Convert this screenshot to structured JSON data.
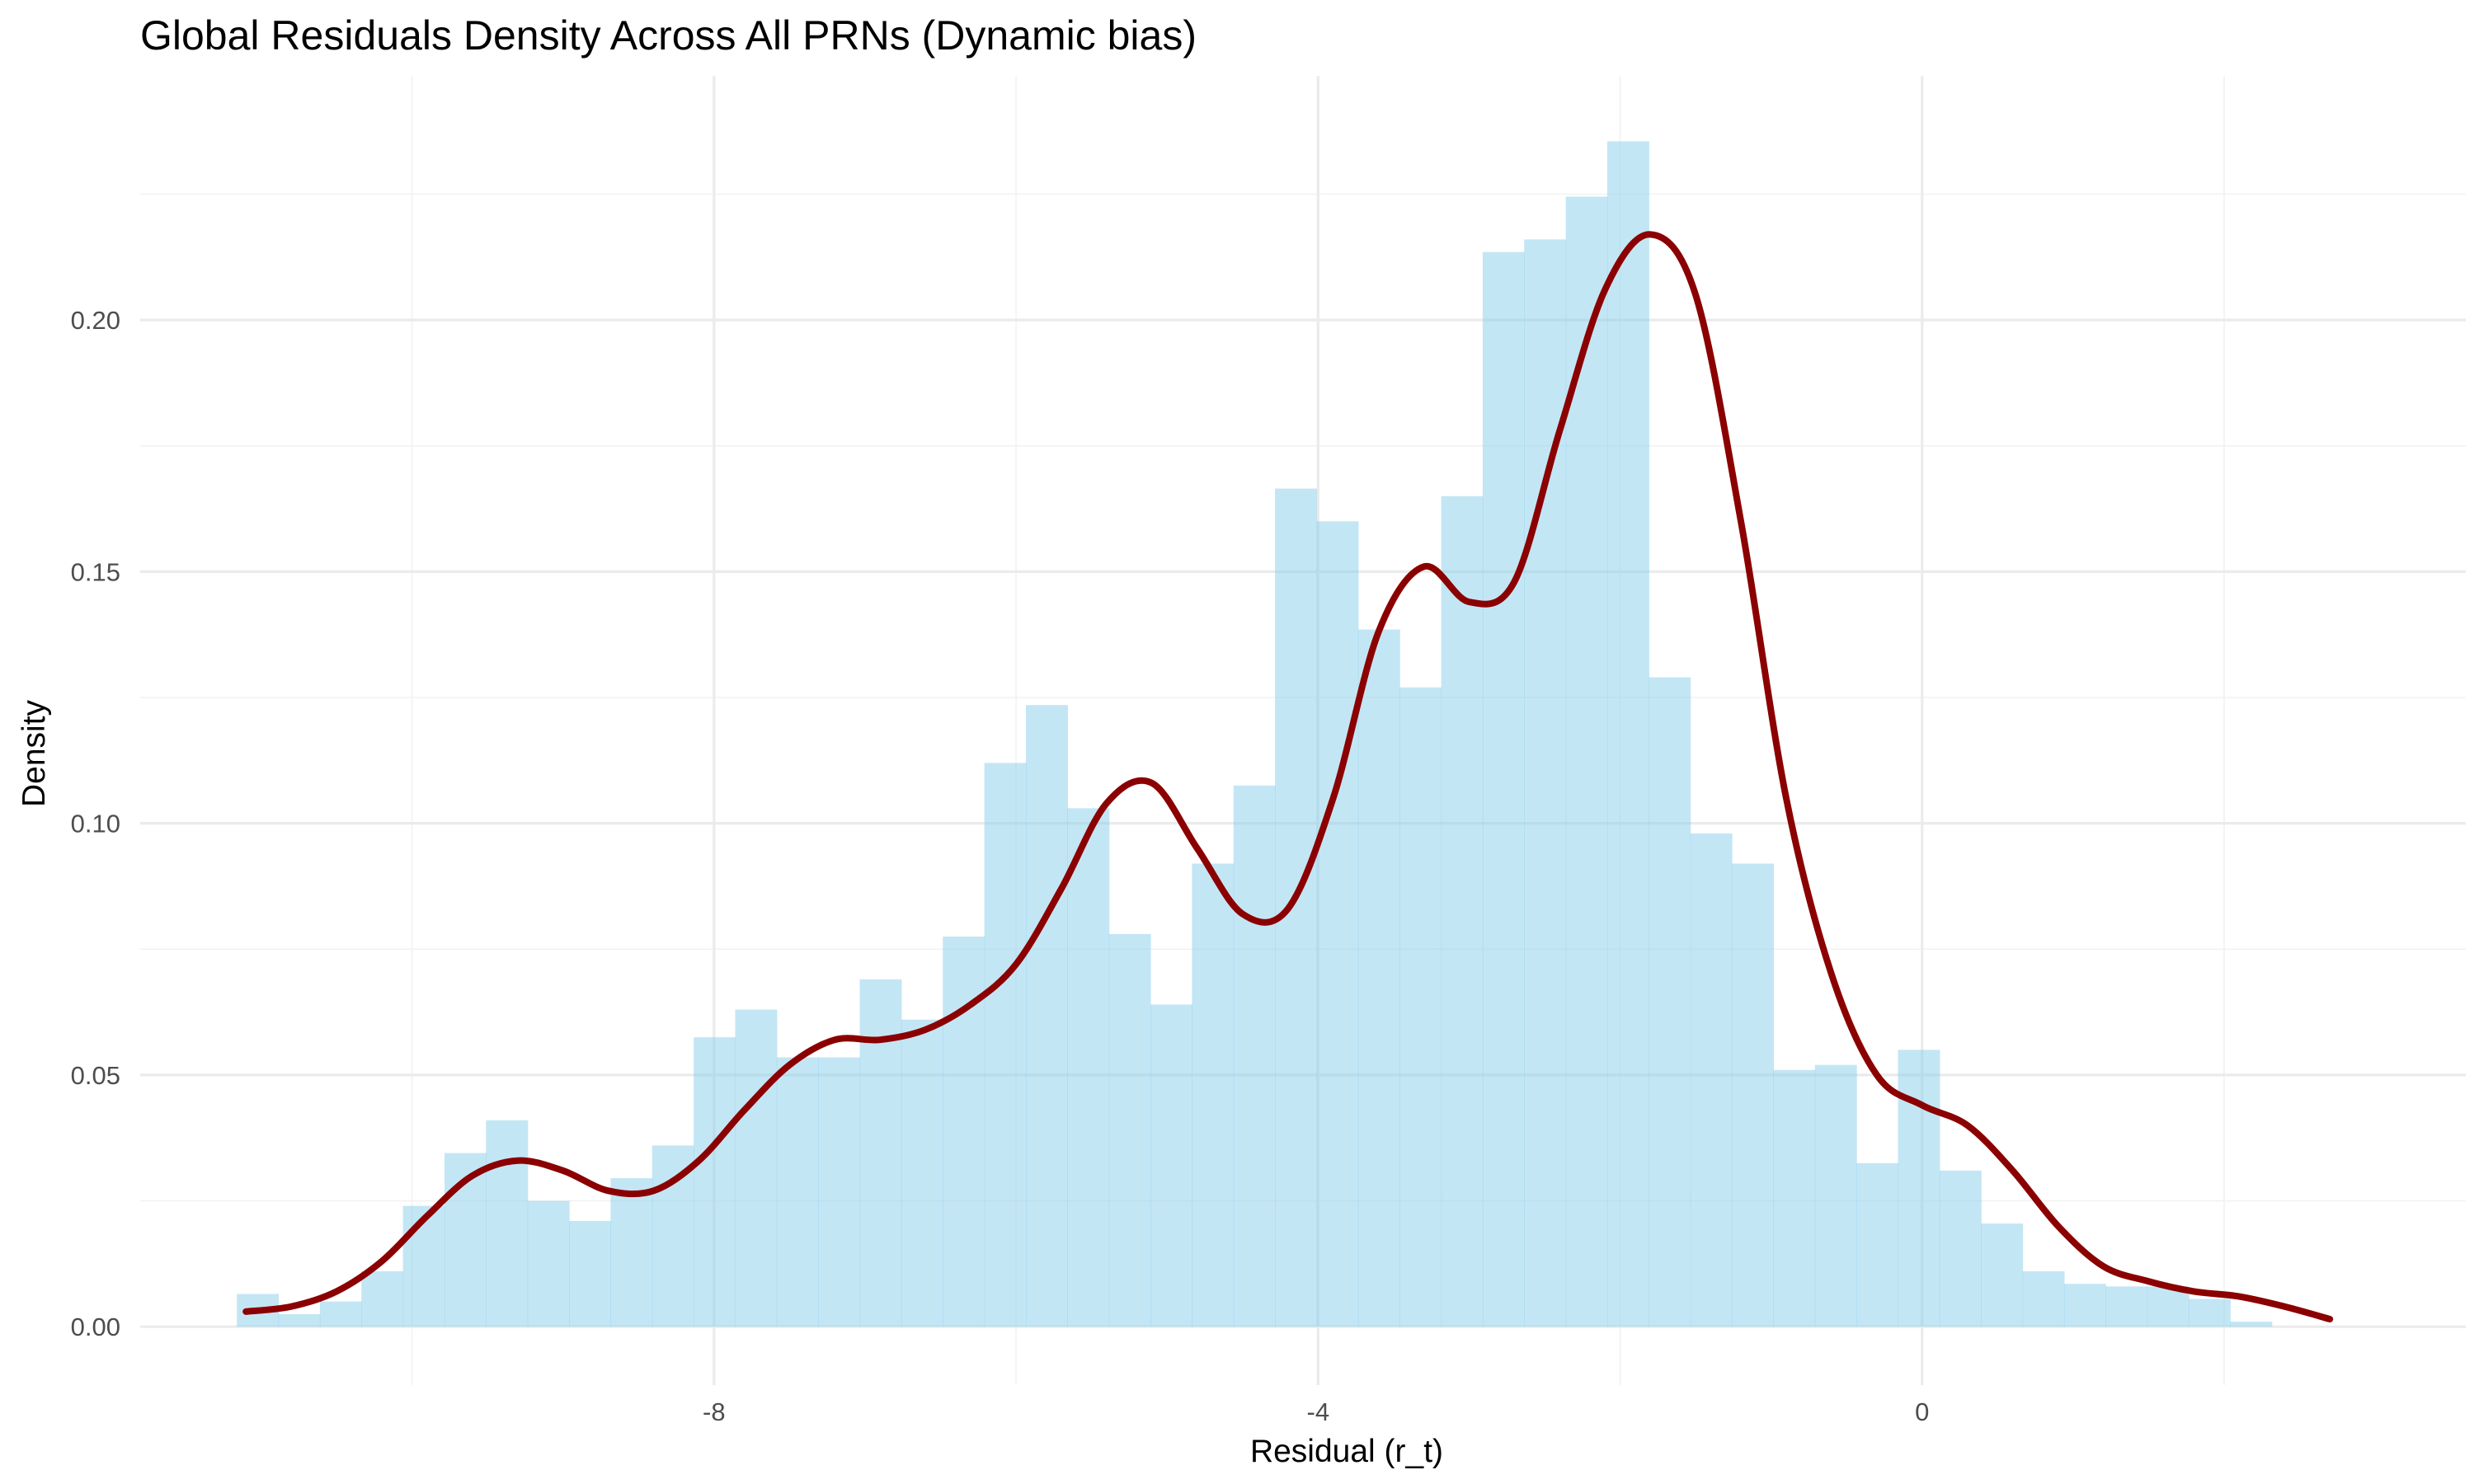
{
  "chart_data": {
    "type": "histogram_density",
    "title": "Global Residuals Density Across All PRNs (Dynamic bias)",
    "xlabel": "Residual (r_t)",
    "ylabel": "Density",
    "xlim": [
      -11.8,
      3.6
    ],
    "ylim": [
      -0.0116,
      0.2485
    ],
    "x_ticks": [
      -8,
      -4,
      0
    ],
    "x_tick_labels": [
      "-8",
      "-4",
      "0"
    ],
    "x_minor_gridlines": [
      -10,
      -6,
      -2,
      2
    ],
    "y_ticks": [
      0.0,
      0.05,
      0.1,
      0.15,
      0.2
    ],
    "y_tick_labels": [
      "0.00",
      "0.05",
      "0.10",
      "0.15",
      "0.20"
    ],
    "y_minor_gridlines": [
      0.025,
      0.075,
      0.125,
      0.175,
      0.225
    ],
    "grid": true,
    "histogram": {
      "bin_width": 0.275,
      "bin_start": -11.16,
      "fill_color": "#87ceeb",
      "fill_opacity": 0.5,
      "densities": [
        0.0065,
        0.0025,
        0.005,
        0.011,
        0.024,
        0.0345,
        0.041,
        0.025,
        0.021,
        0.0295,
        0.036,
        0.0575,
        0.063,
        0.0535,
        0.0535,
        0.069,
        0.061,
        0.0775,
        0.112,
        0.1235,
        0.103,
        0.078,
        0.064,
        0.092,
        0.1075,
        0.1665,
        0.16,
        0.1385,
        0.127,
        0.165,
        0.2135,
        0.216,
        0.2245,
        0.2355,
        0.129,
        0.098,
        0.092,
        0.051,
        0.052,
        0.0325,
        0.055,
        0.031,
        0.0205,
        0.011,
        0.0085,
        0.008,
        0.008,
        0.0055,
        0.001
      ]
    },
    "density_curve": {
      "color": "#8b0000",
      "points": [
        [
          -11.1,
          0.003
        ],
        [
          -10.8,
          0.004
        ],
        [
          -10.5,
          0.007
        ],
        [
          -10.2,
          0.013
        ],
        [
          -9.9,
          0.022
        ],
        [
          -9.6,
          0.03
        ],
        [
          -9.3,
          0.033
        ],
        [
          -9.0,
          0.031
        ],
        [
          -8.7,
          0.027
        ],
        [
          -8.4,
          0.027
        ],
        [
          -8.1,
          0.033
        ],
        [
          -7.8,
          0.043
        ],
        [
          -7.5,
          0.052
        ],
        [
          -7.2,
          0.057
        ],
        [
          -6.9,
          0.057
        ],
        [
          -6.6,
          0.059
        ],
        [
          -6.3,
          0.064
        ],
        [
          -6.0,
          0.072
        ],
        [
          -5.7,
          0.087
        ],
        [
          -5.4,
          0.104
        ],
        [
          -5.1,
          0.108
        ],
        [
          -4.8,
          0.095
        ],
        [
          -4.5,
          0.082
        ],
        [
          -4.2,
          0.083
        ],
        [
          -3.9,
          0.105
        ],
        [
          -3.6,
          0.138
        ],
        [
          -3.3,
          0.151
        ],
        [
          -3.0,
          0.144
        ],
        [
          -2.7,
          0.148
        ],
        [
          -2.4,
          0.178
        ],
        [
          -2.1,
          0.206
        ],
        [
          -1.8,
          0.217
        ],
        [
          -1.5,
          0.205
        ],
        [
          -1.2,
          0.16
        ],
        [
          -0.9,
          0.105
        ],
        [
          -0.6,
          0.07
        ],
        [
          -0.3,
          0.05
        ],
        [
          0.0,
          0.044
        ],
        [
          0.3,
          0.04
        ],
        [
          0.6,
          0.031
        ],
        [
          0.9,
          0.02
        ],
        [
          1.2,
          0.012
        ],
        [
          1.5,
          0.009
        ],
        [
          1.8,
          0.007
        ],
        [
          2.1,
          0.006
        ],
        [
          2.4,
          0.004
        ],
        [
          2.7,
          0.0015
        ]
      ]
    }
  }
}
